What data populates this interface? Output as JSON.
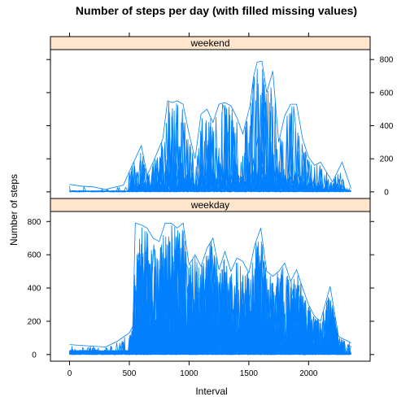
{
  "chart_data": {
    "type": "line",
    "title": "Number of steps per day (with filled missing values)",
    "xlabel": "Interval",
    "ylabel": "Number of steps",
    "xlim": [
      -160,
      2515
    ],
    "ylim": [
      -40,
      860
    ],
    "x_ticks": [
      0,
      500,
      1000,
      1500,
      2000
    ],
    "y_ticks": [
      0,
      200,
      400,
      600,
      800
    ],
    "line_color": "#0080ff",
    "strip_color": "#ffe5cc",
    "panels": [
      {
        "name": "weekend",
        "y_tick_side": "right",
        "peaks": [
          {
            "x": 0,
            "v": 45
          },
          {
            "x": 100,
            "v": 35
          },
          {
            "x": 200,
            "v": 30
          },
          {
            "x": 300,
            "v": 15
          },
          {
            "x": 450,
            "v": 40
          },
          {
            "x": 530,
            "v": 170
          },
          {
            "x": 600,
            "v": 280
          },
          {
            "x": 650,
            "v": 100
          },
          {
            "x": 700,
            "v": 180
          },
          {
            "x": 780,
            "v": 320
          },
          {
            "x": 820,
            "v": 550
          },
          {
            "x": 860,
            "v": 540
          },
          {
            "x": 900,
            "v": 550
          },
          {
            "x": 950,
            "v": 530
          },
          {
            "x": 1000,
            "v": 350
          },
          {
            "x": 1050,
            "v": 200
          },
          {
            "x": 1100,
            "v": 470
          },
          {
            "x": 1150,
            "v": 500
          },
          {
            "x": 1200,
            "v": 420
          },
          {
            "x": 1250,
            "v": 530
          },
          {
            "x": 1300,
            "v": 540
          },
          {
            "x": 1350,
            "v": 520
          },
          {
            "x": 1400,
            "v": 450
          },
          {
            "x": 1450,
            "v": 350
          },
          {
            "x": 1510,
            "v": 520
          },
          {
            "x": 1540,
            "v": 700
          },
          {
            "x": 1570,
            "v": 785
          },
          {
            "x": 1610,
            "v": 790
          },
          {
            "x": 1650,
            "v": 600
          },
          {
            "x": 1700,
            "v": 730
          },
          {
            "x": 1750,
            "v": 300
          },
          {
            "x": 1800,
            "v": 460
          },
          {
            "x": 1850,
            "v": 530
          },
          {
            "x": 1900,
            "v": 530
          },
          {
            "x": 1950,
            "v": 320
          },
          {
            "x": 2000,
            "v": 210
          },
          {
            "x": 2050,
            "v": 160
          },
          {
            "x": 2100,
            "v": 180
          },
          {
            "x": 2200,
            "v": 60
          },
          {
            "x": 2280,
            "v": 180
          },
          {
            "x": 2355,
            "v": 20
          }
        ]
      },
      {
        "name": "weekday",
        "y_tick_side": "left",
        "peaks": [
          {
            "x": 0,
            "v": 60
          },
          {
            "x": 100,
            "v": 55
          },
          {
            "x": 200,
            "v": 50
          },
          {
            "x": 300,
            "v": 45
          },
          {
            "x": 400,
            "v": 80
          },
          {
            "x": 500,
            "v": 130
          },
          {
            "x": 530,
            "v": 170
          },
          {
            "x": 550,
            "v": 790
          },
          {
            "x": 600,
            "v": 780
          },
          {
            "x": 650,
            "v": 760
          },
          {
            "x": 700,
            "v": 700
          },
          {
            "x": 750,
            "v": 680
          },
          {
            "x": 800,
            "v": 790
          },
          {
            "x": 850,
            "v": 790
          },
          {
            "x": 900,
            "v": 760
          },
          {
            "x": 950,
            "v": 790
          },
          {
            "x": 1000,
            "v": 540
          },
          {
            "x": 1050,
            "v": 600
          },
          {
            "x": 1100,
            "v": 530
          },
          {
            "x": 1150,
            "v": 640
          },
          {
            "x": 1200,
            "v": 700
          },
          {
            "x": 1250,
            "v": 510
          },
          {
            "x": 1300,
            "v": 620
          },
          {
            "x": 1350,
            "v": 500
          },
          {
            "x": 1400,
            "v": 580
          },
          {
            "x": 1450,
            "v": 560
          },
          {
            "x": 1500,
            "v": 490
          },
          {
            "x": 1550,
            "v": 660
          },
          {
            "x": 1600,
            "v": 760
          },
          {
            "x": 1650,
            "v": 500
          },
          {
            "x": 1700,
            "v": 470
          },
          {
            "x": 1750,
            "v": 500
          },
          {
            "x": 1800,
            "v": 550
          },
          {
            "x": 1850,
            "v": 440
          },
          {
            "x": 1900,
            "v": 510
          },
          {
            "x": 1950,
            "v": 400
          },
          {
            "x": 2000,
            "v": 300
          },
          {
            "x": 2050,
            "v": 230
          },
          {
            "x": 2100,
            "v": 200
          },
          {
            "x": 2180,
            "v": 410
          },
          {
            "x": 2250,
            "v": 110
          },
          {
            "x": 2300,
            "v": 90
          },
          {
            "x": 2355,
            "v": 70
          }
        ]
      }
    ]
  }
}
